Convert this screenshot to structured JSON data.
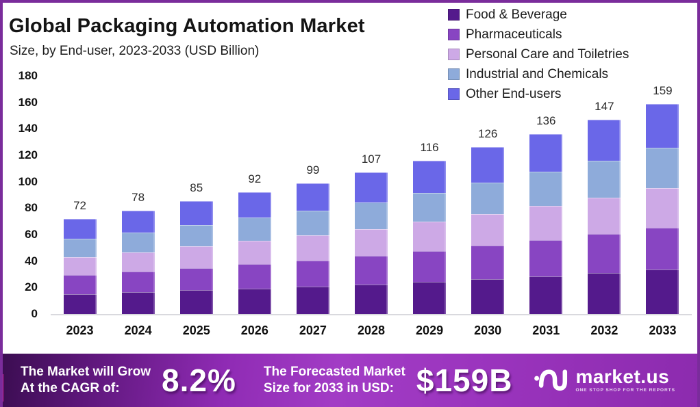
{
  "frame": {
    "border_color": "#7A2C9B",
    "background": "#FFFFFF"
  },
  "header": {
    "title": "Global Packaging Automation Market",
    "subtitle": "Size, by End-user, 2023-2033 (USD Billion)"
  },
  "legend": {
    "position": "top-right",
    "items": [
      {
        "label": "Food & Beverage",
        "color": "#541A8C"
      },
      {
        "label": "Pharmaceuticals",
        "color": "#8845C2"
      },
      {
        "label": "Personal Care and Toiletries",
        "color": "#CDA9E6"
      },
      {
        "label": "Industrial and Chemicals",
        "color": "#8EABDA"
      },
      {
        "label": "Other End-users",
        "color": "#6A67E8"
      }
    ]
  },
  "chart_data": {
    "type": "bar",
    "stacked": true,
    "stack_order": "first-series-at-bottom",
    "title": "Global Packaging Automation Market",
    "subtitle": "Size, by End-user, 2023-2033 (USD Billion)",
    "xlabel": "",
    "ylabel": "USD Billion",
    "ylim": [
      0,
      180
    ],
    "ytick_step": 20,
    "grid": false,
    "legend_position": "top-right",
    "bar_total_labels_shown": true,
    "categories": [
      "2023",
      "2024",
      "2025",
      "2026",
      "2027",
      "2028",
      "2029",
      "2030",
      "2031",
      "2032",
      "2033"
    ],
    "totals": [
      72,
      78,
      85,
      92,
      99,
      107,
      116,
      126,
      136,
      147,
      159
    ],
    "series": [
      {
        "name": "Food & Beverage",
        "color": "#541A8C",
        "values": [
          15.1,
          16.4,
          17.9,
          19.3,
          20.8,
          22.5,
          24.4,
          26.5,
          28.6,
          30.9,
          33.4
        ]
      },
      {
        "name": "Pharmaceuticals",
        "color": "#8845C2",
        "values": [
          14.4,
          15.6,
          17.0,
          18.4,
          19.8,
          21.4,
          23.2,
          25.2,
          27.2,
          29.4,
          31.8
        ]
      },
      {
        "name": "Personal Care and Toiletries",
        "color": "#CDA9E6",
        "values": [
          13.7,
          14.8,
          16.2,
          17.5,
          18.8,
          20.3,
          22.0,
          23.9,
          25.8,
          27.9,
          30.2
        ]
      },
      {
        "name": "Industrial and Chemicals",
        "color": "#8EABDA",
        "values": [
          13.7,
          14.8,
          16.2,
          17.5,
          18.8,
          20.3,
          22.0,
          23.9,
          25.8,
          27.9,
          30.2
        ]
      },
      {
        "name": "Other End-users",
        "color": "#6A67E8",
        "values": [
          15.1,
          16.4,
          17.9,
          19.3,
          20.8,
          22.5,
          24.4,
          26.5,
          28.6,
          30.9,
          33.4
        ]
      }
    ]
  },
  "banner": {
    "background_gradient": [
      "#3A0D50",
      "#A23CC5",
      "#8C2BAE"
    ],
    "accent_color": "#D6259E",
    "cagr": {
      "label_line1": "The Market will Grow",
      "label_line2": "At the CAGR of:",
      "value": "8.2%"
    },
    "forecast": {
      "label_line1": "The Forecasted Market",
      "label_line2": "Size for 2033 in USD:",
      "value": "$159B"
    },
    "logo": {
      "text": "market.us",
      "tagline": "ONE STOP SHOP FOR THE REPORTS"
    }
  }
}
